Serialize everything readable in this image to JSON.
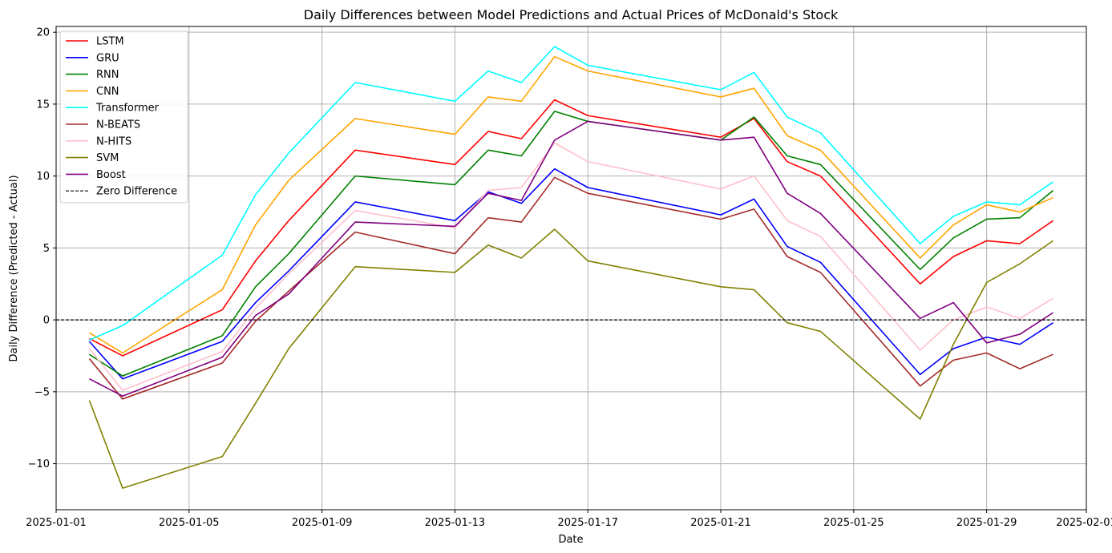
{
  "chart_data": {
    "type": "line",
    "title": "Daily Differences between Model Predictions and Actual Prices of McDonald's Stock",
    "xlabel": "Date",
    "ylabel": "Daily Difference (Predicted - Actual)",
    "grid": true,
    "legend_position": "top-left",
    "xlim": [
      "2025-01-01",
      "2025-02-01"
    ],
    "ylim": [
      -13.2,
      20.4
    ],
    "x_ticks": [
      "2025-01-01",
      "2025-01-05",
      "2025-01-09",
      "2025-01-13",
      "2025-01-17",
      "2025-01-21",
      "2025-01-25",
      "2025-01-29",
      "2025-02-01"
    ],
    "y_ticks": [
      -10,
      -5,
      0,
      5,
      10,
      15,
      20
    ],
    "y_tick_labels": [
      "−10",
      "−5",
      "0",
      "5",
      "10",
      "15",
      "20"
    ],
    "x": [
      "2025-01-02",
      "2025-01-03",
      "2025-01-06",
      "2025-01-07",
      "2025-01-08",
      "2025-01-10",
      "2025-01-13",
      "2025-01-14",
      "2025-01-15",
      "2025-01-16",
      "2025-01-17",
      "2025-01-21",
      "2025-01-22",
      "2025-01-23",
      "2025-01-24",
      "2025-01-27",
      "2025-01-28",
      "2025-01-29",
      "2025-01-30",
      "2025-01-31"
    ],
    "series": [
      {
        "name": "LSTM",
        "color": "#ff0000",
        "values": [
          -1.3,
          -2.5,
          0.7,
          4.1,
          6.9,
          11.8,
          10.8,
          13.1,
          12.6,
          15.3,
          14.2,
          12.7,
          14.0,
          11.0,
          10.0,
          2.5,
          4.4,
          5.5,
          5.3,
          6.9
        ]
      },
      {
        "name": "GRU",
        "color": "#0000ff",
        "values": [
          -1.5,
          -4.1,
          -1.5,
          1.2,
          3.4,
          8.2,
          6.9,
          8.9,
          8.1,
          10.5,
          9.2,
          7.3,
          8.4,
          5.1,
          4.0,
          -3.8,
          -2.0,
          -1.2,
          -1.7,
          -0.2
        ]
      },
      {
        "name": "RNN",
        "color": "#008000",
        "values": [
          -2.4,
          -3.9,
          -1.1,
          2.3,
          4.6,
          10.0,
          9.4,
          11.8,
          11.4,
          14.5,
          13.8,
          12.5,
          14.1,
          11.4,
          10.8,
          3.5,
          5.7,
          7.0,
          7.1,
          9.0
        ]
      },
      {
        "name": "CNN",
        "color": "#ffa500",
        "values": [
          -0.9,
          -2.3,
          2.1,
          6.6,
          9.7,
          14.0,
          12.9,
          15.5,
          15.2,
          18.3,
          17.3,
          15.5,
          16.1,
          12.8,
          11.8,
          4.3,
          6.6,
          8.0,
          7.5,
          8.5
        ]
      },
      {
        "name": "Transformer",
        "color": "#00ffff",
        "values": [
          -1.4,
          -0.4,
          4.5,
          8.7,
          11.6,
          16.5,
          15.2,
          17.3,
          16.5,
          19.0,
          17.7,
          16.0,
          17.2,
          14.1,
          13.0,
          5.3,
          7.2,
          8.2,
          8.0,
          9.6
        ]
      },
      {
        "name": "N-BEATS",
        "color": "#a52a2a",
        "values": [
          -2.7,
          -5.5,
          -3.0,
          -0.1,
          2.0,
          6.1,
          4.6,
          7.1,
          6.8,
          9.9,
          8.8,
          7.0,
          7.7,
          4.4,
          3.3,
          -4.6,
          -2.8,
          -2.3,
          -3.4,
          -2.4
        ]
      },
      {
        "name": "N-HITS",
        "color": "#ffc0cb",
        "values": [
          -2.0,
          -4.9,
          -2.2,
          0.8,
          3.2,
          7.6,
          6.4,
          9.0,
          9.2,
          12.3,
          11.0,
          9.1,
          10.0,
          6.9,
          5.8,
          -2.1,
          0.0,
          0.9,
          0.1,
          1.5
        ]
      },
      {
        "name": "SVM",
        "color": "#808000",
        "values": [
          -5.6,
          -11.7,
          -9.5,
          -5.8,
          -2.0,
          3.7,
          3.3,
          5.2,
          4.3,
          6.3,
          4.1,
          2.3,
          2.1,
          -0.2,
          -0.8,
          -6.9,
          -1.7,
          2.6,
          3.9,
          5.5
        ]
      },
      {
        "name": "Boost",
        "color": "#800080",
        "values": [
          -4.1,
          -5.3,
          -2.6,
          0.3,
          1.8,
          6.8,
          6.5,
          8.8,
          8.3,
          12.5,
          13.8,
          12.5,
          12.7,
          8.8,
          7.4,
          0.1,
          1.2,
          -1.6,
          -1.0,
          0.5
        ]
      }
    ],
    "reference_line": {
      "name": "Zero Difference",
      "y": 0,
      "color": "#000000",
      "style": "dashed"
    }
  }
}
